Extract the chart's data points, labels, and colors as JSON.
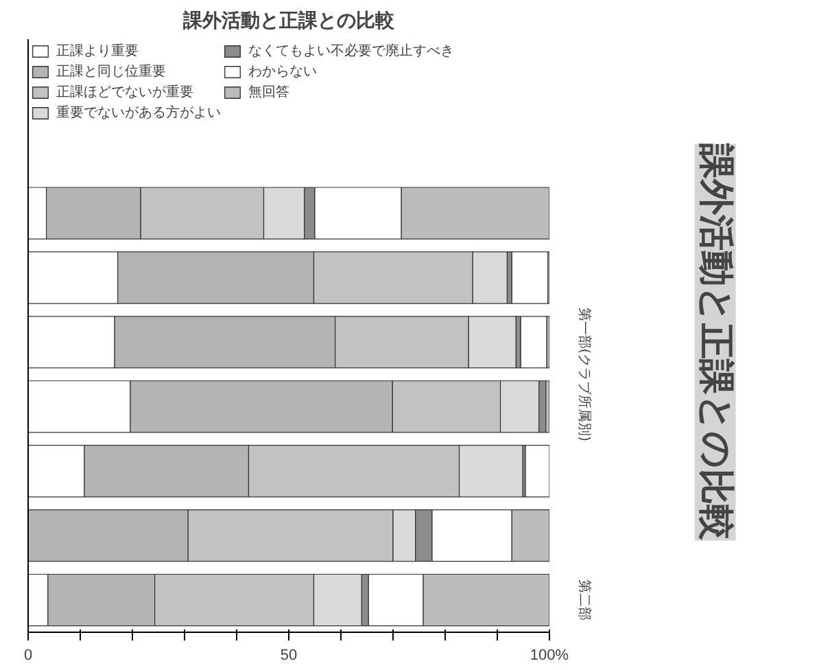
{
  "chart_data": {
    "type": "bar",
    "orientation": "horizontal",
    "stacked": true,
    "title": "課外活動と正課との比較",
    "categories": [
      null,
      null,
      null,
      null,
      null,
      null,
      null
    ],
    "series": [
      {
        "name": "正課より重要",
        "color": "#ffffff",
        "values": [
          3.5,
          17.2,
          16.6,
          19.6,
          10.8,
          0,
          3.8
        ]
      },
      {
        "name": "正課と同じ位重要",
        "color": "#b4b4b4",
        "values": [
          18.1,
          37.6,
          42.3,
          50.3,
          31.5,
          30.7,
          20.5
        ]
      },
      {
        "name": "正課ほどでないが重要",
        "color": "#c2c2c2",
        "values": [
          23.6,
          30.5,
          25.6,
          20.7,
          40.4,
          39.3,
          30.5
        ]
      },
      {
        "name": "重要でないがある方がよい",
        "color": "#dadada",
        "values": [
          7.8,
          6.6,
          9.1,
          7.4,
          12.2,
          4.3,
          9.2
        ]
      },
      {
        "name": "なくてもよい不必要で廃止すべき",
        "color": "#8c8c8c",
        "values": [
          2.0,
          0.9,
          0.9,
          1.3,
          0.5,
          3.2,
          1.3
        ]
      },
      {
        "name": "わからない",
        "color": "#ffffff",
        "values": [
          16.6,
          6.9,
          5.0,
          0,
          4.6,
          15.3,
          10.5
        ]
      },
      {
        "name": "無回答",
        "color": "#bcbcbc",
        "values": [
          28.4,
          0.6,
          0.5,
          0.7,
          0,
          7.2,
          24.2
        ]
      }
    ],
    "xlim": [
      0,
      100
    ],
    "xticks": [
      0,
      {
        "value": 10,
        "label": null
      },
      {
        "value": 20,
        "label": null
      },
      {
        "value": 30,
        "label": null
      },
      {
        "value": 40,
        "label": null
      },
      50,
      {
        "value": 60,
        "label": null
      },
      {
        "value": 70,
        "label": null
      },
      {
        "value": 80,
        "label": null
      },
      {
        "value": 90,
        "label": null
      },
      {
        "value": 100,
        "label": "100%"
      }
    ],
    "legend": "top",
    "grid": false,
    "annotations": [
      "第一部(クラブ所属別)",
      "第二部",
      "課外活動と正課との比較"
    ]
  }
}
